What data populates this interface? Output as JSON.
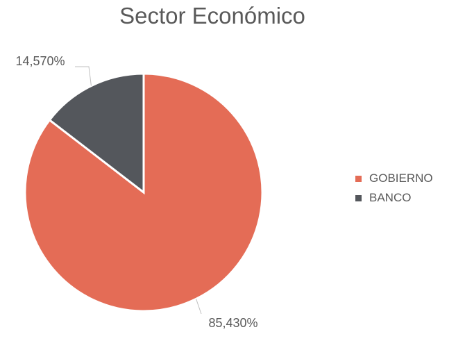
{
  "chart_data": {
    "type": "pie",
    "title": "Sector Económico",
    "categories": [
      "GOBIERNO",
      "BANCO"
    ],
    "values": [
      85.43,
      14.57
    ],
    "data_labels": [
      "85,430%",
      "14,570%"
    ],
    "colors": [
      "#E46C56",
      "#54575C"
    ],
    "legend_position": "right"
  }
}
